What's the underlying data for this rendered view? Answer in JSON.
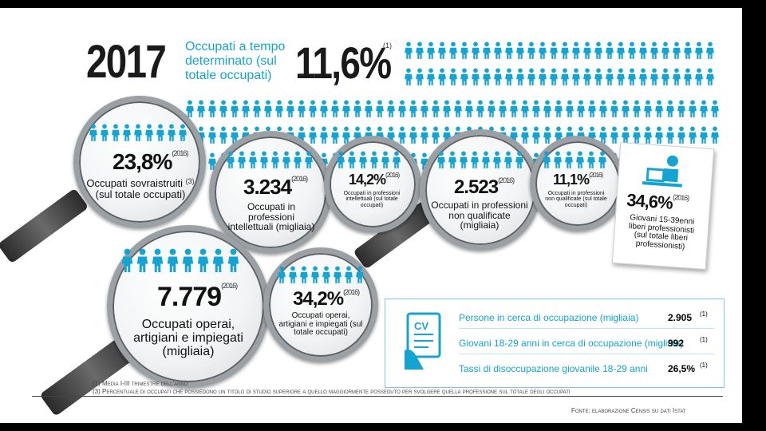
{
  "header": {
    "year": "2017",
    "subtitle": "Occupati a tempo determinato (sul totale occupati)",
    "main_value": "11,6%",
    "main_note": "(1)"
  },
  "lenses": {
    "sovraistruiti": {
      "value": "23,8%",
      "note": "(2016)",
      "label": "Occupati sovraistruiti",
      "label_note": "(3)",
      "sublabel": "(sul totale occupati)"
    },
    "intellettuali_n": {
      "value": "3.234",
      "note": "(2016)",
      "label": "Occupati in professioni intellettuali (migliaia)"
    },
    "intellettuali_p": {
      "value": "14,2%",
      "note": "(2016)",
      "label": "Occupati in professioni intellettuali (sul totale occupati)"
    },
    "non_qual_n": {
      "value": "2.523",
      "note": "(2016)",
      "label": "Occupati in professioni non qualificate (migliaia)"
    },
    "non_qual_p": {
      "value": "11,1%",
      "note": "(2016)",
      "label": "Occupati in professioni non qualificate (sul totale occupati)"
    },
    "operai_n": {
      "value": "7.779",
      "note": "(2016)",
      "label": "Occupati operai, artigiani e impiegati (migliaia)"
    },
    "operai_p": {
      "value": "34,2%",
      "note": "(2016)",
      "label": "Occupati operai, artigiani e impiegati (sul totale occupati)"
    }
  },
  "card": {
    "value": "34,6%",
    "note": "(2016)",
    "label": "Giovani 15-39enni liberi professionisti (sul totale liberi professionisti)"
  },
  "cv_icon_text": "CV",
  "table": {
    "rows": [
      {
        "label": "Persone in cerca di occupazione (migliaia)",
        "value": "2.905",
        "note": "(1)"
      },
      {
        "label": "Giovani 18-29 anni in cerca di occupazione (migliaia)",
        "value": "992",
        "note": "(1)"
      },
      {
        "label": "Tassi di disoccupazione giovanile 18-29 anni",
        "value": "26,5%",
        "note": "(1)"
      }
    ]
  },
  "footnotes": {
    "f1": "(1) Media I-III trimestre dell'anno",
    "f3": "(3) Percentuale di occupati che possiedono un titolo di studio superiore a quello maggiormente posseduto per svolgere quella professione sul totale degli occupati",
    "source": "Fonte: elaborazione Censis su dati Istat"
  },
  "colors": {
    "accent": "#14a4d4",
    "text": "#1a1a1a",
    "background": "#ffffff"
  },
  "icons": [
    "person-icon",
    "magnifying-glass-icon",
    "laptop-worker-icon",
    "cv-document-icon"
  ]
}
